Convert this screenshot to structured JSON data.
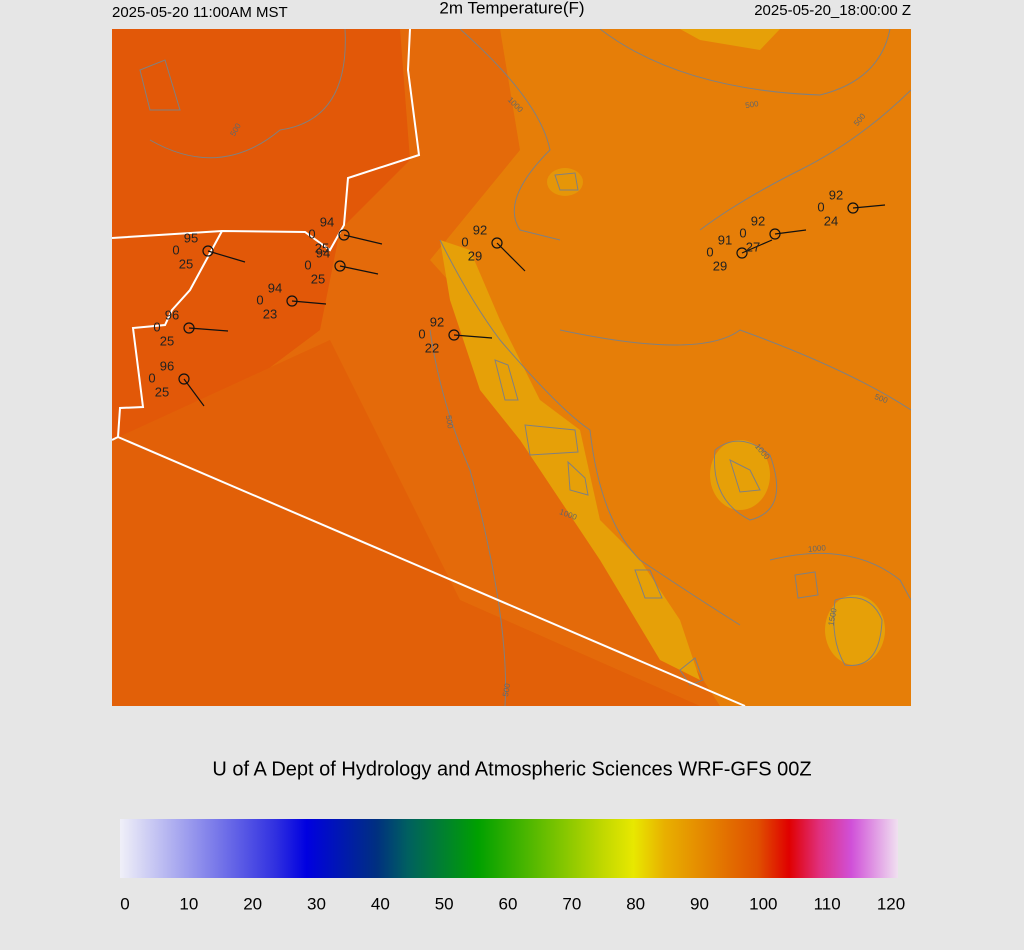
{
  "header": {
    "left": "2025-05-20 11:00AM MST",
    "title": "2m Temperature(F)",
    "right": "2025-05-20_18:00:00 Z"
  },
  "stations": [
    {
      "temp": "95",
      "mid": "0",
      "dew": "25"
    },
    {
      "temp": "94",
      "mid": "0",
      "dew": "25"
    },
    {
      "temp": "94",
      "mid": "0",
      "dew": "25"
    },
    {
      "temp": "94",
      "mid": "0",
      "dew": "23"
    },
    {
      "temp": "96",
      "mid": "0",
      "dew": "25"
    },
    {
      "temp": "96",
      "mid": "0",
      "dew": "25"
    },
    {
      "temp": "92",
      "mid": "0",
      "dew": "29"
    },
    {
      "temp": "92",
      "mid": "0",
      "dew": "22"
    },
    {
      "temp": "91",
      "mid": "0",
      "dew": "29"
    },
    {
      "temp": "92",
      "mid": "0",
      "dew": "27"
    },
    {
      "temp": "92",
      "mid": "0",
      "dew": "24"
    }
  ],
  "contour_labels": [
    "500",
    "1000",
    "500",
    "500",
    "500",
    "1000",
    "1000",
    "1000",
    "1500",
    "500",
    "500"
  ],
  "credit": "U of A Dept of Hydrology and Atmospheric Sciences WRF-GFS 00Z",
  "colorbar": {
    "ticks": [
      0,
      10,
      20,
      30,
      40,
      50,
      60,
      70,
      80,
      90,
      100,
      110,
      120
    ]
  }
}
